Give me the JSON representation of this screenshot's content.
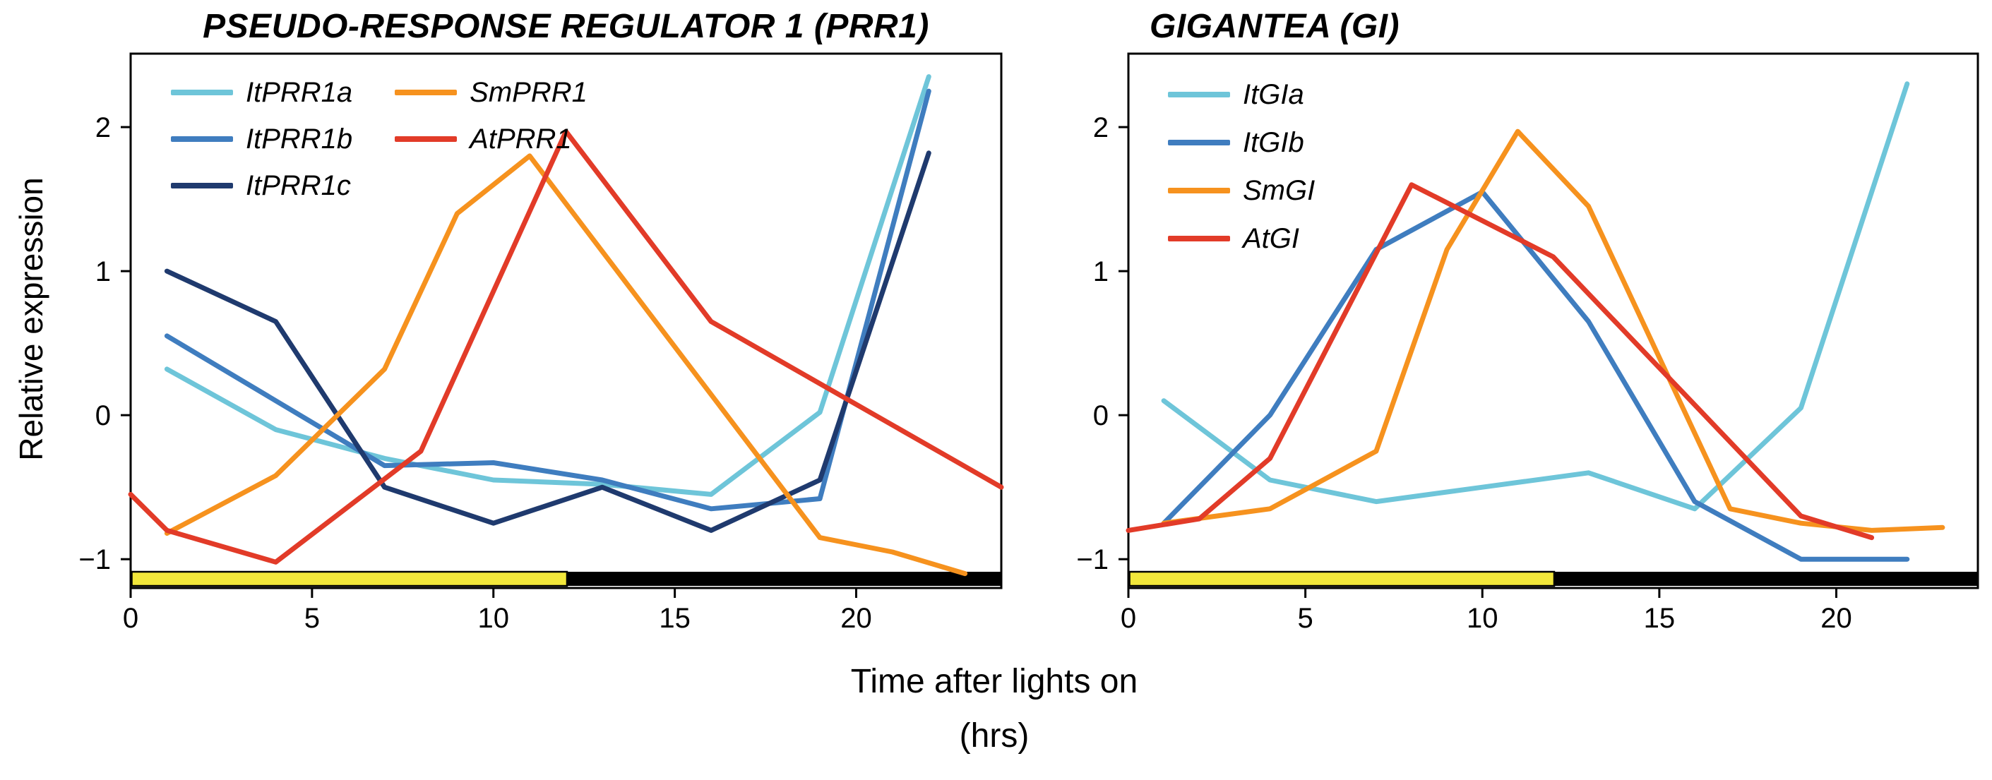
{
  "figure": {
    "background": "#ffffff",
    "y_axis_label": "Relative expression",
    "x_axis_label_line1": "Time after lights on",
    "x_axis_label_line2": "(hrs)"
  },
  "chart_data": [
    {
      "type": "line",
      "title": "PSEUDO-RESPONSE REGULATOR 1 (PRR1)",
      "xlabel": "Time after lights on (hrs)",
      "ylabel": "Relative expression",
      "xlim": [
        0,
        24
      ],
      "ylim": [
        -1.2,
        2.51
      ],
      "xticks": [
        0,
        5,
        10,
        15,
        20
      ],
      "yticks": [
        -1,
        0,
        1,
        2
      ],
      "grid": false,
      "legend_position": "top-left",
      "light_dark_bar": {
        "light_span": [
          0,
          12
        ],
        "dark_span": [
          12,
          24
        ],
        "light_color": "#f2e73b",
        "dark_color": "#000000"
      },
      "series": [
        {
          "name": "ItPRR1a",
          "color": "#6ec5d9",
          "x": [
            1,
            4,
            7,
            10,
            13,
            16,
            19,
            22
          ],
          "y": [
            0.32,
            -0.1,
            -0.3,
            -0.45,
            -0.48,
            -0.55,
            0.02,
            2.35
          ]
        },
        {
          "name": "ItPRR1b",
          "color": "#3f7dbf",
          "x": [
            1,
            4,
            7,
            10,
            13,
            16,
            19,
            22
          ],
          "y": [
            0.55,
            0.1,
            -0.35,
            -0.33,
            -0.45,
            -0.65,
            -0.58,
            2.25
          ]
        },
        {
          "name": "ItPRR1c",
          "color": "#1f3a6e",
          "x": [
            1,
            4,
            7,
            10,
            13,
            16,
            19,
            22
          ],
          "y": [
            1.0,
            0.65,
            -0.5,
            -0.75,
            -0.5,
            -0.8,
            -0.45,
            1.82
          ]
        },
        {
          "name": "SmPRR1",
          "color": "#f6921e",
          "x": [
            1,
            4,
            7,
            9,
            11,
            19,
            21,
            23
          ],
          "y": [
            -0.82,
            -0.42,
            0.32,
            1.4,
            1.8,
            -0.85,
            -0.95,
            -1.1
          ]
        },
        {
          "name": "AtPRR1",
          "color": "#e23b28",
          "x": [
            0,
            1,
            4,
            8,
            12,
            16,
            24
          ],
          "y": [
            -0.55,
            -0.8,
            -1.02,
            -0.25,
            1.97,
            0.65,
            -0.5
          ]
        }
      ]
    },
    {
      "type": "line",
      "title": "GIGANTEA (GI)",
      "xlabel": "Time after lights on (hrs)",
      "ylabel": "Relative expression",
      "xlim": [
        0,
        24
      ],
      "ylim": [
        -1.2,
        2.51
      ],
      "xticks": [
        0,
        5,
        10,
        15,
        20
      ],
      "yticks": [
        -1,
        0,
        1,
        2
      ],
      "grid": false,
      "legend_position": "top-left",
      "light_dark_bar": {
        "light_span": [
          0,
          12
        ],
        "dark_span": [
          12,
          24
        ],
        "light_color": "#f2e73b",
        "dark_color": "#000000"
      },
      "series": [
        {
          "name": "ItGIa",
          "color": "#6ec5d9",
          "x": [
            1,
            4,
            7,
            10,
            13,
            16,
            19,
            22
          ],
          "y": [
            0.1,
            -0.45,
            -0.6,
            -0.5,
            -0.4,
            -0.65,
            0.05,
            2.3
          ]
        },
        {
          "name": "ItGIb",
          "color": "#3f7dbf",
          "x": [
            1,
            4,
            7,
            10,
            13,
            16,
            19,
            22
          ],
          "y": [
            -0.75,
            0.0,
            1.15,
            1.55,
            0.65,
            -0.6,
            -1.0,
            -1.0
          ]
        },
        {
          "name": "SmGI",
          "color": "#f6921e",
          "x": [
            1,
            4,
            7,
            9,
            11,
            13,
            17,
            19,
            21,
            23
          ],
          "y": [
            -0.75,
            -0.65,
            -0.25,
            1.15,
            1.97,
            1.45,
            -0.65,
            -0.75,
            -0.8,
            -0.78
          ]
        },
        {
          "name": "AtGI",
          "color": "#e23b28",
          "x": [
            0,
            2,
            4,
            8,
            12,
            19,
            21
          ],
          "y": [
            -0.8,
            -0.72,
            -0.3,
            1.6,
            1.1,
            -0.7,
            -0.85
          ]
        }
      ]
    }
  ]
}
